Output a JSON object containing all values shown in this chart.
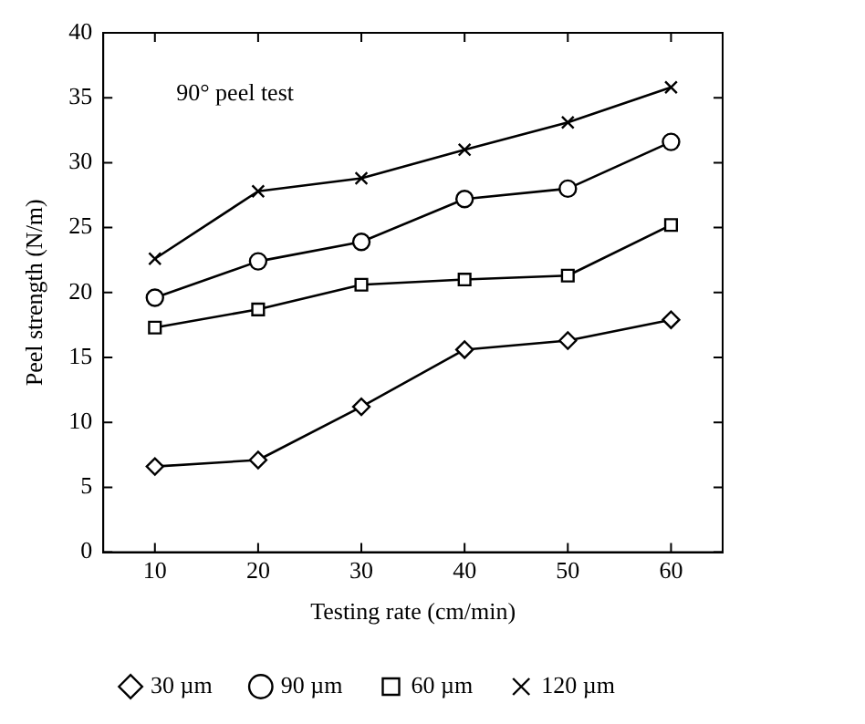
{
  "chart_data": {
    "type": "line",
    "xlabel": "Testing rate (cm/min)",
    "ylabel": "Peel strength (N/m)",
    "annotations": [
      "90° peel test"
    ],
    "x": [
      10,
      20,
      30,
      40,
      50,
      60
    ],
    "xlim": [
      5,
      65
    ],
    "xticks": [
      10,
      20,
      30,
      40,
      50,
      60
    ],
    "ylim": [
      0,
      40
    ],
    "yticks": [
      0,
      5,
      10,
      15,
      20,
      25,
      30,
      35,
      40
    ],
    "grid": false,
    "legend": "bottom",
    "line_style": "solid",
    "series": [
      {
        "name": "30 µm",
        "color": "#000000",
        "marker": "diamond",
        "values": [
          6.6,
          7.1,
          11.2,
          15.6,
          16.3,
          17.9
        ]
      },
      {
        "name": "90 µm",
        "color": "#000000",
        "marker": "circle",
        "values": [
          19.6,
          22.4,
          23.9,
          27.2,
          28.0,
          31.6
        ]
      },
      {
        "name": "60 µm",
        "color": "#000000",
        "marker": "square",
        "values": [
          17.3,
          18.7,
          20.6,
          21.0,
          21.3,
          25.2
        ]
      },
      {
        "name": "120 µm",
        "color": "#000000",
        "marker": "cross",
        "values": [
          22.6,
          27.8,
          28.8,
          31.0,
          33.1,
          35.8
        ]
      }
    ]
  }
}
